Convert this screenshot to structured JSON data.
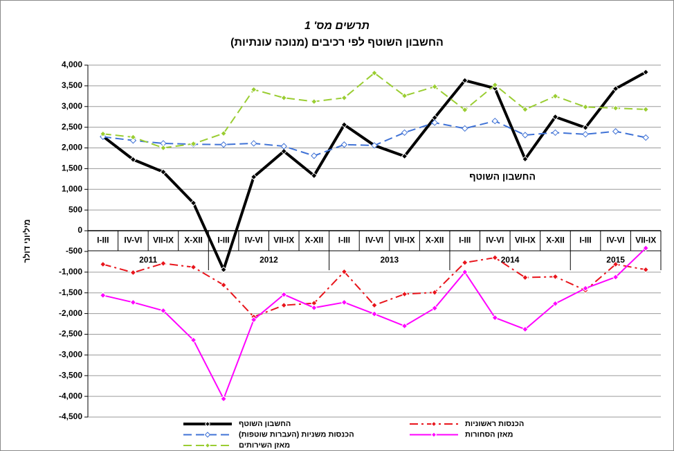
{
  "chart_data": {
    "type": "line",
    "title": "תרשים מס' 1",
    "subtitle": "החשבון השוטף לפי רכיבים (מנוכה עונתיות)",
    "y_label": "מיליוני דולר",
    "annotation": "החשבון השוטף",
    "categories": [
      "I-III",
      "IV-VI",
      "VII-IX",
      "X-XII",
      "I-III",
      "IV-VI",
      "VII-IX",
      "X-XII",
      "I-III",
      "IV-VI",
      "VII-IX",
      "X-XII",
      "I-III",
      "IV-VI",
      "VII-IX",
      "X-XII",
      "I-III",
      "IV-VI",
      "VII-IX"
    ],
    "year_groups": [
      "2011",
      "2012",
      "2013",
      "2014",
      "2015"
    ],
    "ylim": [
      -4500,
      4000
    ],
    "yticks": [
      {
        "value": 4000,
        "label": "4,000"
      },
      {
        "value": 3500,
        "label": "3,500"
      },
      {
        "value": 3000,
        "label": "3,000"
      },
      {
        "value": 2500,
        "label": "2,500"
      },
      {
        "value": 2000,
        "label": "2,000"
      },
      {
        "value": 1500,
        "label": "1,500"
      },
      {
        "value": 1000,
        "label": "1,000"
      },
      500,
      0,
      -500,
      {
        "value": -1000,
        "label": "-1,000"
      },
      {
        "value": -1500,
        "label": "-1,500"
      },
      {
        "value": -2000,
        "label": "-2,000"
      },
      {
        "value": -2500,
        "label": "-2,500"
      },
      {
        "value": -3000,
        "label": "-3,000"
      },
      {
        "value": -3500,
        "label": "-3,500"
      },
      {
        "value": -4000,
        "label": "-4,000"
      },
      {
        "value": -4500,
        "label": "-4,500"
      }
    ],
    "grid": true,
    "series": [
      {
        "name": "החשבון השוטף",
        "color": "#000000",
        "dash": "solid",
        "width": 4,
        "marker": "filled",
        "values": [
          2280,
          1720,
          1420,
          670,
          -940,
          1300,
          1920,
          1330,
          2560,
          2060,
          1800,
          2730,
          3630,
          3440,
          1730,
          2750,
          2490,
          3430,
          3830
        ]
      },
      {
        "name": "הכנסות ראשוניות",
        "color": "#e8141b",
        "dash": "dashdot",
        "width": 2,
        "marker": "filled",
        "values": [
          -810,
          -1010,
          -790,
          -880,
          -1310,
          -2080,
          -1800,
          -1750,
          -990,
          -1800,
          -1530,
          -1490,
          -770,
          -650,
          -1130,
          -1110,
          -1440,
          -810,
          -940
        ]
      },
      {
        "name": "הכנסות משניות (העברות שוטפות)",
        "color": "#3f72d6",
        "dash": "dashed",
        "width": 2,
        "marker": "open",
        "values": [
          2270,
          2180,
          2110,
          2090,
          2080,
          2110,
          2040,
          1810,
          2080,
          2060,
          2370,
          2610,
          2470,
          2650,
          2310,
          2370,
          2330,
          2400,
          2250
        ]
      },
      {
        "name": "מאזן הסחורות",
        "color": "#ff00ff",
        "dash": "solid",
        "width": 2,
        "marker": "filled",
        "values": [
          -1560,
          -1730,
          -1930,
          -2640,
          -4060,
          -2150,
          -1540,
          -1860,
          -1730,
          -2010,
          -2300,
          -1870,
          -1000,
          -2100,
          -2380,
          -1760,
          -1390,
          -1120,
          -420
        ]
      },
      {
        "name": "מאזן השירותים",
        "color": "#9acd32",
        "dash": "dashed",
        "width": 2,
        "marker": "filled",
        "values": [
          2340,
          2260,
          2000,
          2100,
          2350,
          3410,
          3210,
          3120,
          3210,
          3810,
          3260,
          3480,
          2920,
          3520,
          2930,
          3250,
          2990,
          2960,
          2930
        ]
      }
    ]
  }
}
